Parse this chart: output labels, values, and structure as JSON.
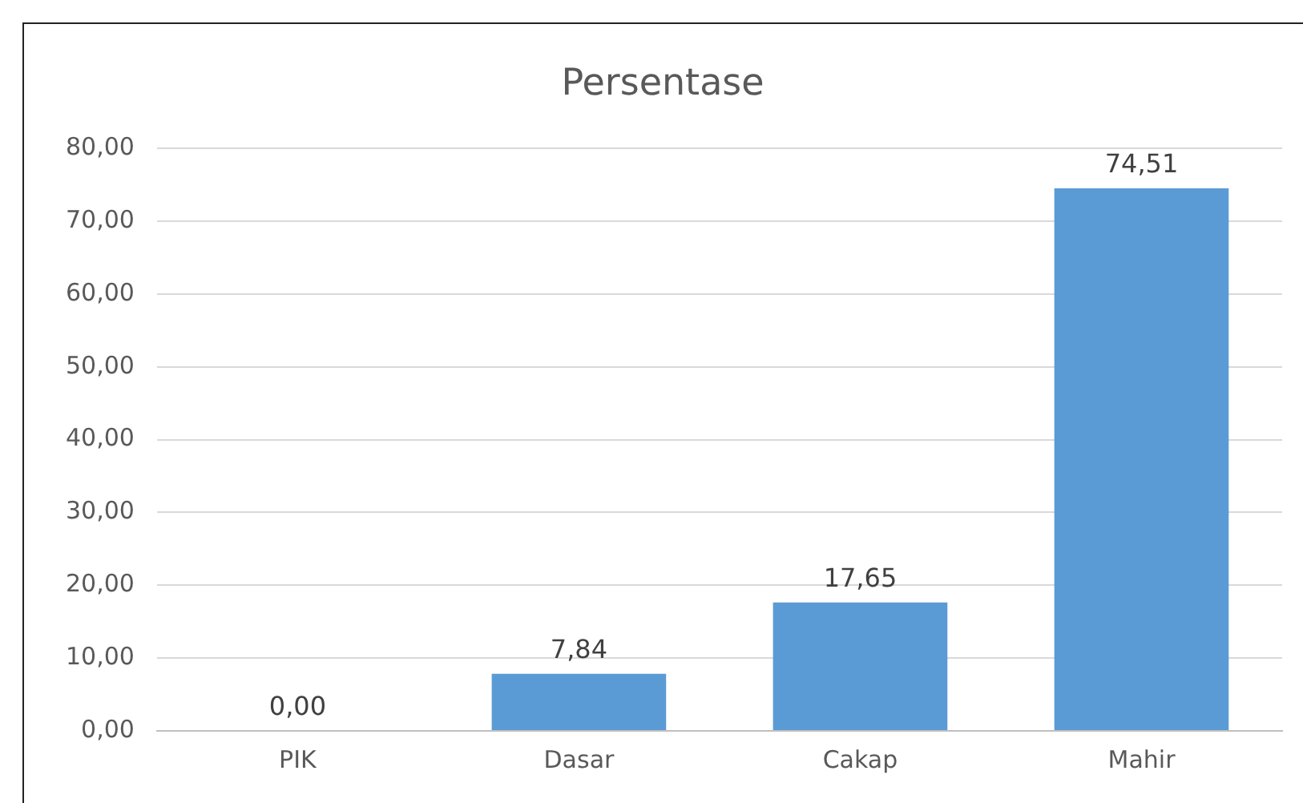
{
  "chart_data": {
    "type": "bar",
    "title": "Persentase",
    "categories": [
      "PIK",
      "Dasar",
      "Cakap",
      "Mahir"
    ],
    "values": [
      0,
      7.84,
      17.65,
      74.51
    ],
    "value_labels": [
      "0,00",
      "7,84",
      "17,65",
      "74,51"
    ],
    "color": "#5b9bd5",
    "ylim": [
      0,
      80
    ],
    "yticks": [
      {
        "value": 0,
        "label": "0,00"
      },
      {
        "value": 10,
        "label": "10,00"
      },
      {
        "value": 20,
        "label": "20,00"
      },
      {
        "value": 30,
        "label": "30,00"
      },
      {
        "value": 40,
        "label": "40,00"
      },
      {
        "value": 50,
        "label": "50,00"
      },
      {
        "value": 60,
        "label": "60,00"
      },
      {
        "value": 70,
        "label": "70,00"
      },
      {
        "value": 80,
        "label": "80,00"
      }
    ],
    "grid": "y",
    "legend": false
  }
}
